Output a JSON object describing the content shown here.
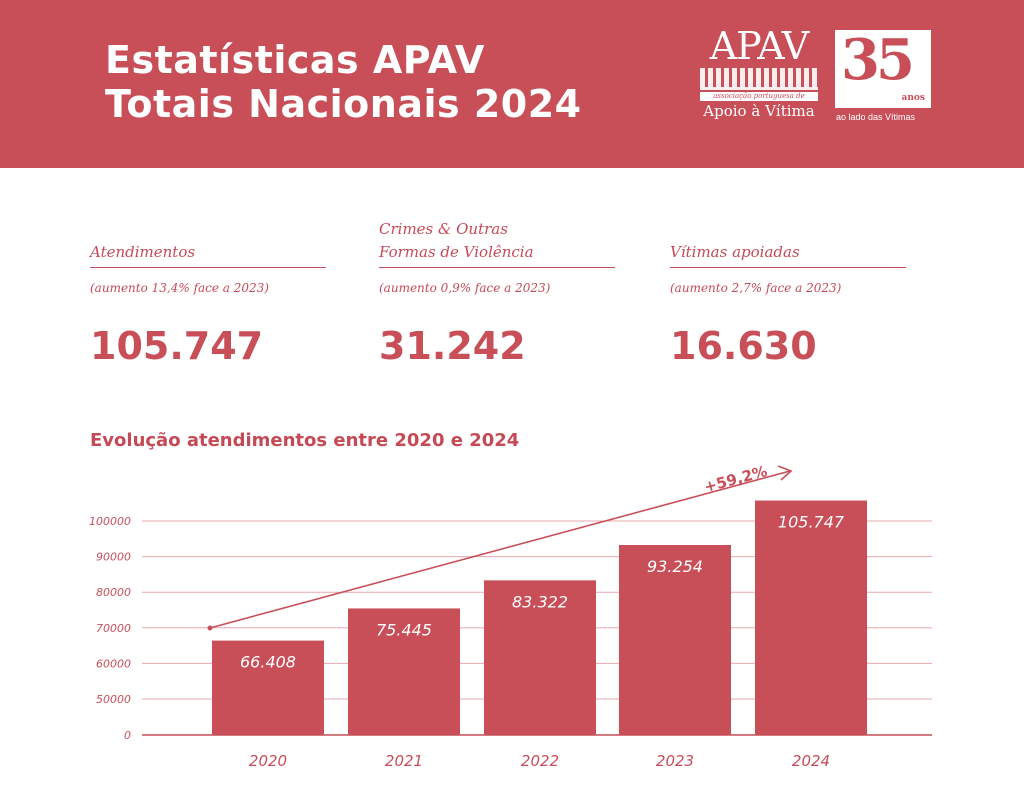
{
  "header": {
    "title_line1": "Estatísticas APAV",
    "title_line2": "Totais Nacionais 2024",
    "logo_apav": {
      "name": "APAV",
      "band": "associação portuguesa de",
      "sub": "Apoio à Vítima"
    },
    "logo_35": {
      "number": "35",
      "anos": "anos",
      "tagline": "ao lado das Vítimas"
    }
  },
  "stats": [
    {
      "label_line1": "Atendimentos",
      "label_line2": "",
      "sub": "(aumento 13,4% face a 2023)",
      "value": "105.747"
    },
    {
      "label_line1": "Crimes & Outras",
      "label_line2": "Formas de Violência",
      "sub": "(aumento 0,9% face a 2023)",
      "value": "31.242"
    },
    {
      "label_line1": "Vítimas apoiadas",
      "label_line2": "",
      "sub": "(aumento 2,7% face a 2023)",
      "value": "16.630"
    }
  ],
  "colors": {
    "brand": "#c84e58",
    "grid": "#e6a9ae"
  },
  "chart_data": {
    "type": "bar",
    "title": "Evolução atendimentos entre 2020 e 2024",
    "categories": [
      "2020",
      "2021",
      "2022",
      "2023",
      "2024"
    ],
    "values": [
      66408,
      75445,
      83322,
      93254,
      105747
    ],
    "data_labels": [
      "66.408",
      "75.445",
      "83.322",
      "93.254",
      "105.747"
    ],
    "yticks": [
      0,
      50000,
      60000,
      70000,
      80000,
      90000,
      100000
    ],
    "ytick_labels": [
      "0",
      "50000",
      "60000",
      "70000",
      "80000",
      "90000",
      "100000"
    ],
    "axis_break": "between 0 and 50000",
    "grid": true,
    "annotation": "+59,2%"
  }
}
